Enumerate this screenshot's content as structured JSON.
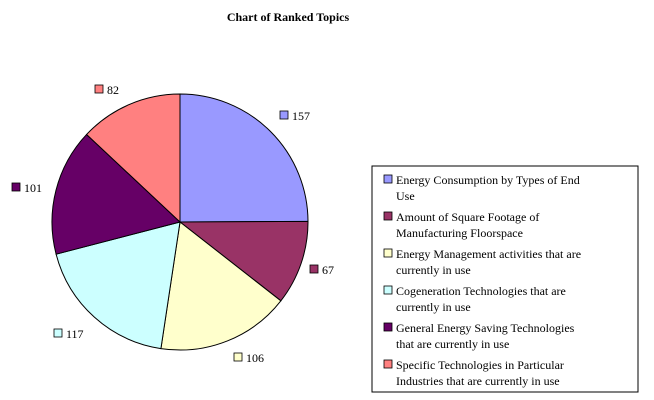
{
  "chart_data": {
    "type": "pie",
    "title": "Chart of Ranked Topics",
    "slices": [
      {
        "label": "Energy Consumption by Types of End Use",
        "legend_lines": [
          "Energy Consumption by Types of End",
          "Use"
        ],
        "value": 157,
        "color": "#9999ff"
      },
      {
        "label": "Amount of Square Footage of Manufacturing Floorspace",
        "legend_lines": [
          "Amount of Square Footage of",
          "Manufacturing Floorspace"
        ],
        "value": 67,
        "color": "#993366"
      },
      {
        "label": "Energy Management activities that are currently in use",
        "legend_lines": [
          "Energy Management activities that are",
          "currently in use"
        ],
        "value": 106,
        "color": "#ffffcc"
      },
      {
        "label": "Cogeneration Technologies that are currently in use",
        "legend_lines": [
          "Cogeneration Technologies that are",
          "currently in use"
        ],
        "value": 117,
        "color": "#ccffff"
      },
      {
        "label": "General Energy Saving Technologies that are currently in use",
        "legend_lines": [
          "General Energy Saving Technologies",
          "that are currently in use"
        ],
        "value": 101,
        "color": "#660066"
      },
      {
        "label": "Specific Technologies in Particular Industries that are currently in use",
        "legend_lines": [
          "Specific Technologies in Particular",
          "Industries that are currently in use"
        ],
        "value": 82,
        "color": "#ff8080"
      }
    ],
    "data_labels": true,
    "legend_position": "right"
  }
}
